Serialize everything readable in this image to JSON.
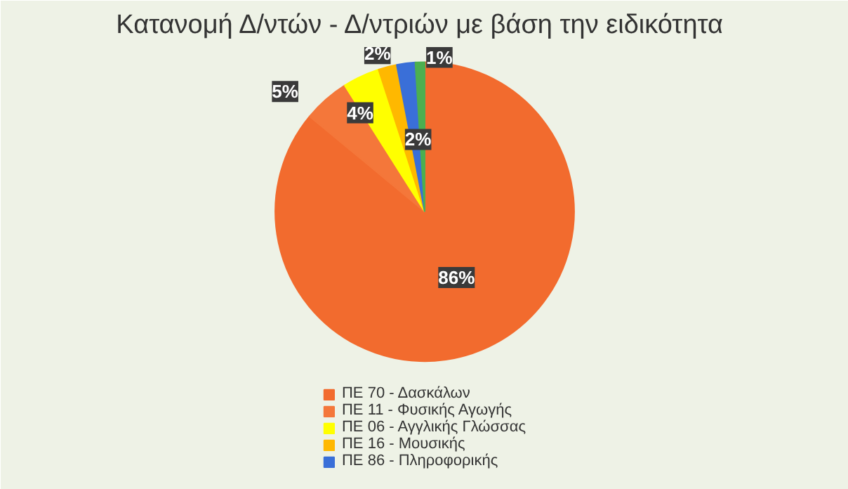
{
  "chart_data": {
    "type": "pie",
    "title": "Κατανομή  Δ/ντών - Δ/ντριών με βάση την ειδικότητα",
    "categories": [
      "ΠΕ 70 - Δασκάλων",
      "ΠΕ 11 - Φυσικής Αγωγής",
      "ΠΕ 06 - Αγγλικής Γλώσσας",
      "ΠΕ 16 - Μουσικής",
      "ΠΕ 86 - Πληροφορικής",
      null
    ],
    "values": [
      86,
      5,
      4,
      2,
      2,
      1
    ],
    "colors": [
      "#f26b2e",
      "#f4773a",
      "#ffff00",
      "#ffb800",
      "#3a6fd8",
      "#4caf50"
    ],
    "value_labels": [
      "86%",
      "5%",
      "4%",
      "2%",
      "2%",
      "1%"
    ],
    "legend": "bottom"
  }
}
